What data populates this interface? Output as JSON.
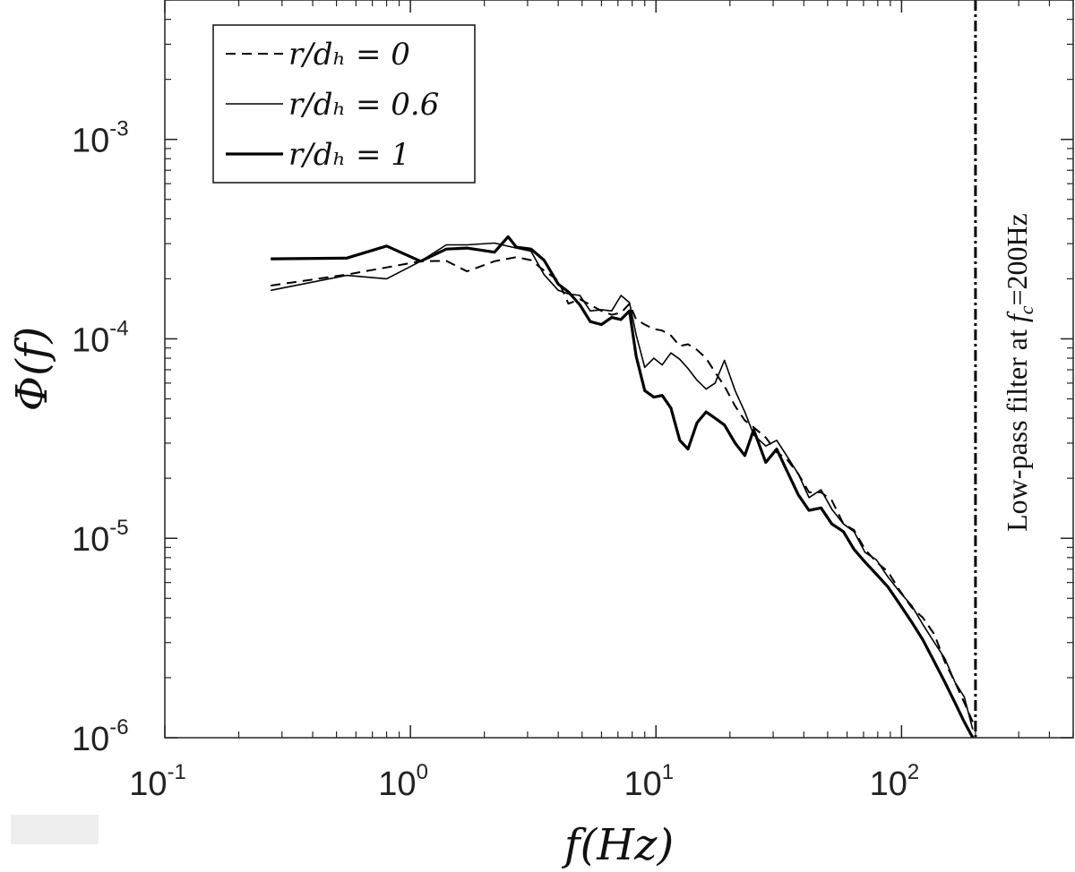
{
  "chart_data": {
    "type": "line",
    "x_scale": "log",
    "y_scale": "log",
    "xlim": [
      0.1,
      500
    ],
    "ylim": [
      1e-06,
      0.005
    ],
    "xlabel": "f(Hz)",
    "ylabel": "Φ(f)",
    "grid": false,
    "legend_position": "top-left",
    "x_ticks": [
      {
        "value": 0.1,
        "base": "10",
        "exp": "-1"
      },
      {
        "value": 1,
        "base": "10",
        "exp": "0"
      },
      {
        "value": 10,
        "base": "10",
        "exp": "1"
      },
      {
        "value": 100,
        "base": "10",
        "exp": "2"
      }
    ],
    "y_ticks": [
      {
        "value": 1e-06,
        "base": "10",
        "exp": "-6"
      },
      {
        "value": 1e-05,
        "base": "10",
        "exp": "-5"
      },
      {
        "value": 0.0001,
        "base": "10",
        "exp": "-4"
      },
      {
        "value": 0.001,
        "base": "10",
        "exp": "-3"
      }
    ],
    "series": [
      {
        "name": "r/d_h = 0",
        "legend_label": "r/dₕ = 0",
        "style": "dashed",
        "color": "#000000",
        "x": [
          0.27,
          0.55,
          0.8,
          1.1,
          1.4,
          1.7,
          2.2,
          2.7,
          3.1,
          3.5,
          4.0,
          4.4,
          4.9,
          5.4,
          6.0,
          6.6,
          7.2,
          7.8,
          8.3,
          9.0,
          9.8,
          10.6,
          11.5,
          12.5,
          13.5,
          14.7,
          16,
          17.4,
          19,
          21,
          23,
          25,
          28,
          31,
          34,
          38,
          42,
          47,
          52,
          58,
          64,
          71,
          79,
          88,
          98,
          110,
          122,
          136,
          150,
          165,
          180,
          195
        ],
        "y": [
          0.000185,
          0.00021,
          0.000228,
          0.000245,
          0.000246,
          0.000218,
          0.000245,
          0.000257,
          0.000248,
          0.00022,
          0.000196,
          0.00015,
          0.000158,
          0.000148,
          0.000138,
          0.000132,
          0.000135,
          0.00015,
          0.000125,
          0.000118,
          0.000112,
          0.00011,
          0.000104,
          9.2e-05,
          9.4e-05,
          8.8e-05,
          8e-05,
          6.8e-05,
          5.8e-05,
          4.6e-05,
          3.9e-05,
          3.6e-05,
          3.2e-05,
          2.7e-05,
          2.5e-05,
          2.1e-05,
          1.7e-05,
          1.7e-05,
          1.55e-05,
          1.18e-05,
          1.1e-05,
          8.8e-06,
          7.6e-06,
          6.8e-06,
          5.5e-06,
          4.5e-06,
          4e-06,
          3.3e-06,
          2.4e-06,
          1.9e-06,
          1.5e-06,
          1.2e-06
        ]
      },
      {
        "name": "r/d_h = 0.6",
        "legend_label": "r/dₕ = 0.6",
        "style": "solid-thin",
        "color": "#000000",
        "x": [
          0.27,
          0.55,
          0.8,
          1.1,
          1.4,
          1.7,
          2.2,
          2.7,
          3.1,
          3.5,
          4.0,
          4.4,
          4.9,
          5.4,
          6.0,
          6.6,
          7.2,
          7.8,
          8.3,
          9.0,
          9.8,
          10.6,
          11.5,
          12.5,
          13.5,
          14.7,
          16,
          17.4,
          19,
          21,
          23,
          25,
          28,
          31,
          34,
          38,
          42,
          47,
          52,
          58,
          64,
          71,
          79,
          88,
          98,
          110,
          122,
          136,
          150,
          165,
          180,
          195
        ],
        "y": [
          0.000175,
          0.000208,
          0.0002,
          0.000245,
          0.000296,
          0.000296,
          0.000302,
          0.000285,
          0.000275,
          0.00021,
          0.000175,
          0.000168,
          0.000165,
          0.000138,
          0.00014,
          0.000138,
          0.000165,
          0.000152,
          0.000105,
          7.2e-05,
          8e-05,
          7.4e-05,
          8.5e-05,
          7.9e-05,
          7.1e-05,
          6.2e-05,
          5.6e-05,
          6e-05,
          7.8e-05,
          5.5e-05,
          4.3e-05,
          3.3e-05,
          2.9e-05,
          3.1e-05,
          2.6e-05,
          2.1e-05,
          1.6e-05,
          1.75e-05,
          1.4e-05,
          1.18e-05,
          1.08e-05,
          8.5e-06,
          7.8e-06,
          6.4e-06,
          5.4e-06,
          4.6e-06,
          3.7e-06,
          3e-06,
          2.5e-06,
          1.9e-06,
          1.6e-06,
          1.1e-06
        ]
      },
      {
        "name": "r/d_h = 1",
        "legend_label": "r/dₕ = 1",
        "style": "solid-thick",
        "color": "#000000",
        "x": [
          0.27,
          0.55,
          0.8,
          1.1,
          1.4,
          1.7,
          2.2,
          2.5,
          2.7,
          3.1,
          3.5,
          4.0,
          4.4,
          4.9,
          5.4,
          6.0,
          6.6,
          7.2,
          7.8,
          8.3,
          9.0,
          9.8,
          10.6,
          11.5,
          12.5,
          13.5,
          14.7,
          16,
          17.4,
          19,
          21,
          23,
          25,
          28,
          31,
          34,
          38,
          42,
          47,
          52,
          58,
          64,
          71,
          79,
          88,
          98,
          110,
          122,
          136,
          150,
          165,
          180,
          195
        ],
        "y": [
          0.000252,
          0.000254,
          0.000292,
          0.000245,
          0.000282,
          0.000285,
          0.000272,
          0.000325,
          0.000288,
          0.000282,
          0.000248,
          0.000188,
          0.000172,
          0.000148,
          0.000122,
          0.000118,
          0.000128,
          0.000125,
          0.000138,
          8.2e-05,
          5.5e-05,
          5.1e-05,
          5.2e-05,
          4.5e-05,
          3.1e-05,
          2.8e-05,
          3.8e-05,
          4.3e-05,
          4e-05,
          3.7e-05,
          3e-05,
          2.6e-05,
          3.5e-05,
          2.4e-05,
          2.8e-05,
          2.2e-05,
          1.65e-05,
          1.38e-05,
          1.42e-05,
          1.18e-05,
          1.08e-05,
          8.8e-06,
          7.6e-06,
          6.6e-06,
          5.7e-06,
          4.7e-06,
          3.8e-06,
          3.1e-06,
          2.4e-06,
          1.9e-06,
          1.5e-06,
          1.2e-06,
          1e-06
        ]
      }
    ],
    "vline": {
      "x": 200,
      "style": "dash-dot",
      "label": "Low-pass filter at f_c=200Hz",
      "label_pre": "Low-pass filter at ",
      "label_f": "f",
      "label_sub": "c",
      "label_post": "=200Hz"
    }
  },
  "colors": {
    "axes": "#222222",
    "series": "#000000",
    "background": "#ffffff",
    "gray_box": "#eeeeee"
  }
}
